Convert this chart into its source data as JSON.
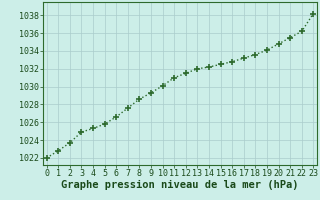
{
  "x": [
    0,
    1,
    2,
    3,
    4,
    5,
    6,
    7,
    8,
    9,
    10,
    11,
    12,
    13,
    14,
    15,
    16,
    17,
    18,
    19,
    20,
    21,
    22,
    23
  ],
  "y": [
    1022.0,
    1022.8,
    1023.7,
    1024.9,
    1025.3,
    1025.8,
    1026.6,
    1027.6,
    1028.6,
    1029.3,
    1030.1,
    1031.0,
    1031.5,
    1032.0,
    1032.2,
    1032.5,
    1032.8,
    1033.2,
    1033.6,
    1034.1,
    1034.8,
    1035.5,
    1036.2,
    1038.2
  ],
  "line_color": "#2d6a2d",
  "marker": "+",
  "markersize": 5,
  "markeredgewidth": 1.2,
  "linewidth": 1.0,
  "linestyle": "dotted",
  "bg_color": "#cceee8",
  "grid_color": "#aacccc",
  "xlabel": "Graphe pression niveau de la mer (hPa)",
  "xlabel_fontsize": 7.5,
  "xlabel_color": "#1a4a1a",
  "ytick_labels": [
    "1022",
    "1024",
    "1026",
    "1028",
    "1030",
    "1032",
    "1034",
    "1036",
    "1038"
  ],
  "ytick_values": [
    1022,
    1024,
    1026,
    1028,
    1030,
    1032,
    1034,
    1036,
    1038
  ],
  "xtick_labels": [
    "0",
    "1",
    "2",
    "3",
    "4",
    "5",
    "6",
    "7",
    "8",
    "9",
    "10",
    "11",
    "12",
    "13",
    "14",
    "15",
    "16",
    "17",
    "18",
    "19",
    "20",
    "21",
    "22",
    "23"
  ],
  "ylim": [
    1021.2,
    1039.5
  ],
  "xlim": [
    -0.3,
    23.3
  ],
  "tick_fontsize": 6.0,
  "tick_color": "#1a4a1a",
  "spine_color": "#2d6a2d"
}
